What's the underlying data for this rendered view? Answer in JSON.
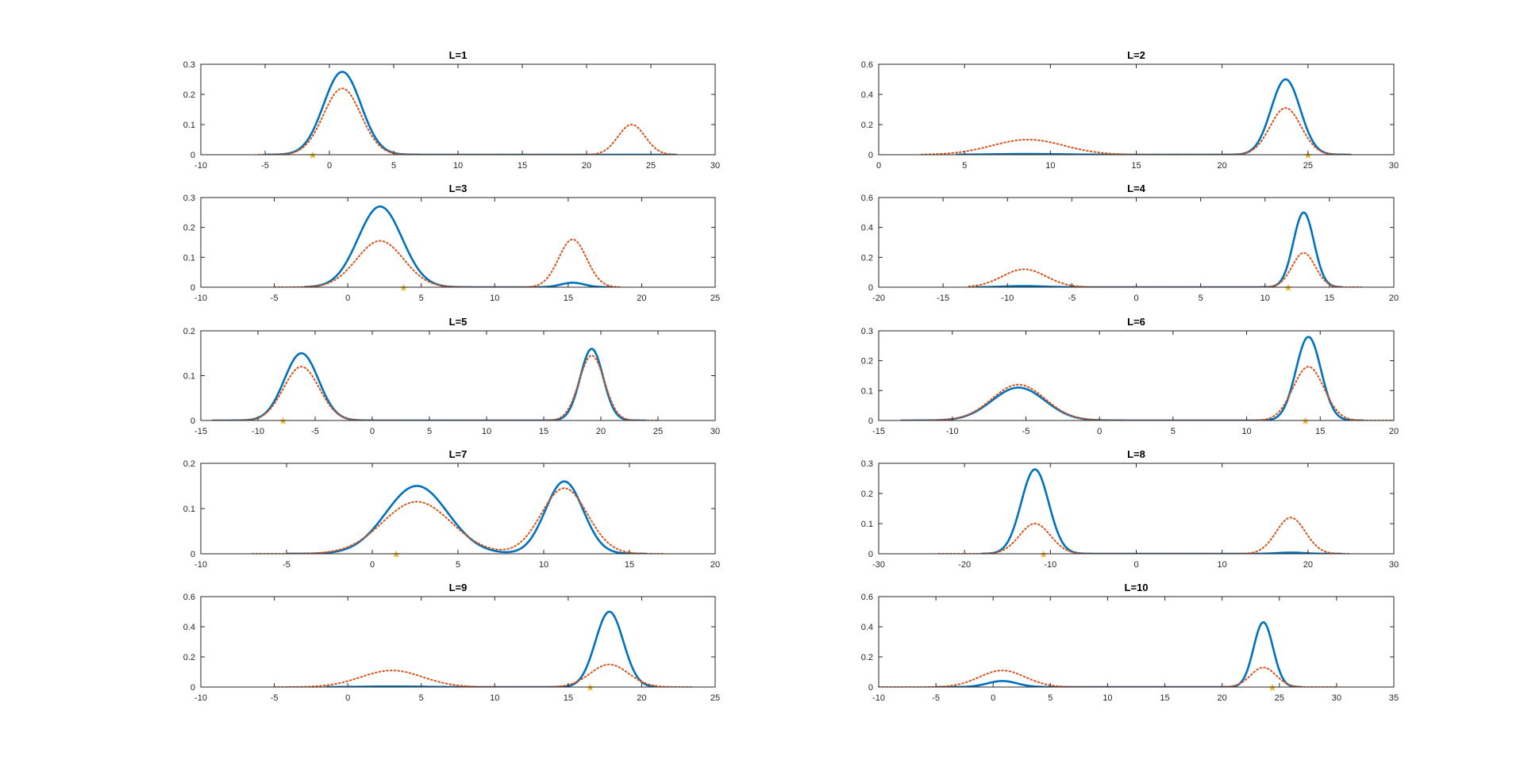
{
  "colors": {
    "solid": "#0072BD",
    "dotted": "#D95319",
    "marker": "#EDB120",
    "axis": "#262626"
  },
  "chart_data": [
    {
      "type": "line",
      "title": "L=1",
      "xlim": [
        -10,
        30
      ],
      "ylim": [
        0,
        0.3
      ],
      "xticks": [
        -10,
        -5,
        0,
        5,
        10,
        15,
        20,
        25,
        30
      ],
      "yticks": [
        0,
        0.1,
        0.2,
        0.3
      ],
      "series": [
        {
          "style": "solid",
          "components": [
            {
              "mu": 1,
              "sigma": 1.45,
              "amp": 0.275,
              "from": -5,
              "to": 27
            }
          ]
        },
        {
          "style": "dotted",
          "components": [
            {
              "mu": 1,
              "sigma": 1.45,
              "amp": 0.22,
              "from": -5.5,
              "to": 27
            },
            {
              "mu": 23.5,
              "sigma": 1.05,
              "amp": 0.1
            }
          ]
        }
      ],
      "marker": {
        "x": -1.3,
        "y": 0
      }
    },
    {
      "type": "line",
      "title": "L=2",
      "xlim": [
        0,
        30
      ],
      "ylim": [
        0,
        0.6
      ],
      "xticks": [
        0,
        5,
        10,
        15,
        20,
        25,
        30
      ],
      "yticks": [
        0,
        0.2,
        0.4,
        0.6
      ],
      "series": [
        {
          "style": "solid",
          "components": [
            {
              "mu": 23.7,
              "sigma": 0.85,
              "amp": 0.5,
              "from": 4.5,
              "to": 27.5
            },
            {
              "mu": 8.7,
              "sigma": 2,
              "amp": 0.005
            }
          ]
        },
        {
          "style": "dotted",
          "components": [
            {
              "mu": 8.7,
              "sigma": 2.1,
              "amp": 0.1,
              "from": 2.5,
              "to": 27.5
            },
            {
              "mu": 23.7,
              "sigma": 0.9,
              "amp": 0.31
            }
          ]
        }
      ],
      "marker": {
        "x": 25,
        "y": 0
      }
    },
    {
      "type": "line",
      "title": "L=3",
      "xlim": [
        -10,
        25
      ],
      "ylim": [
        0,
        0.3
      ],
      "xticks": [
        -10,
        -5,
        0,
        5,
        10,
        15,
        20,
        25
      ],
      "yticks": [
        0,
        0.1,
        0.2,
        0.3
      ],
      "series": [
        {
          "style": "solid",
          "components": [
            {
              "mu": 2.2,
              "sigma": 1.5,
              "amp": 0.27,
              "from": -3,
              "to": 18
            },
            {
              "mu": 15.3,
              "sigma": 0.8,
              "amp": 0.015
            }
          ]
        },
        {
          "style": "dotted",
          "components": [
            {
              "mu": 2.2,
              "sigma": 1.6,
              "amp": 0.155,
              "from": -5,
              "to": 18.5
            },
            {
              "mu": 15.3,
              "sigma": 0.95,
              "amp": 0.16
            }
          ]
        }
      ],
      "marker": {
        "x": 3.8,
        "y": 0
      }
    },
    {
      "type": "line",
      "title": "L=4",
      "xlim": [
        -20,
        20
      ],
      "ylim": [
        0,
        0.6
      ],
      "xticks": [
        -20,
        -15,
        -10,
        -5,
        0,
        5,
        10,
        15,
        20
      ],
      "yticks": [
        0,
        0.2,
        0.4,
        0.6
      ],
      "series": [
        {
          "style": "solid",
          "components": [
            {
              "mu": 13,
              "sigma": 0.8,
              "amp": 0.5,
              "from": -12.5,
              "to": 16
            },
            {
              "mu": -8.7,
              "sigma": 1.5,
              "amp": 0.008
            }
          ]
        },
        {
          "style": "dotted",
          "components": [
            {
              "mu": -8.7,
              "sigma": 1.7,
              "amp": 0.12,
              "from": -13,
              "to": 17.5
            },
            {
              "mu": 13,
              "sigma": 0.9,
              "amp": 0.23
            }
          ]
        }
      ],
      "marker": {
        "x": 11.8,
        "y": 0
      }
    },
    {
      "type": "line",
      "title": "L=5",
      "xlim": [
        -15,
        30
      ],
      "ylim": [
        0,
        0.2
      ],
      "xticks": [
        -15,
        -10,
        -5,
        0,
        5,
        10,
        15,
        20,
        25,
        30
      ],
      "yticks": [
        0,
        0.1,
        0.2
      ],
      "series": [
        {
          "style": "solid",
          "components": [
            {
              "mu": -6.2,
              "sigma": 1.5,
              "amp": 0.15,
              "from": -14,
              "to": 24
            },
            {
              "mu": 19.2,
              "sigma": 1,
              "amp": 0.16
            }
          ]
        },
        {
          "style": "dotted",
          "components": [
            {
              "mu": -6.2,
              "sigma": 1.55,
              "amp": 0.12,
              "from": -14,
              "to": 25
            },
            {
              "mu": 19.2,
              "sigma": 1.1,
              "amp": 0.145
            }
          ]
        }
      ],
      "marker": {
        "x": -7.8,
        "y": 0
      }
    },
    {
      "type": "line",
      "title": "L=6",
      "xlim": [
        -15,
        20
      ],
      "ylim": [
        0,
        0.3
      ],
      "xticks": [
        -15,
        -10,
        -5,
        0,
        5,
        10,
        15,
        20
      ],
      "yticks": [
        0,
        0.1,
        0.2,
        0.3
      ],
      "series": [
        {
          "style": "solid",
          "components": [
            {
              "mu": -5.5,
              "sigma": 1.8,
              "amp": 0.11,
              "from": -13.5,
              "to": 18
            },
            {
              "mu": 14.2,
              "sigma": 0.85,
              "amp": 0.28
            }
          ]
        },
        {
          "style": "dotted",
          "components": [
            {
              "mu": -5.5,
              "sigma": 1.8,
              "amp": 0.12,
              "from": -13.5,
              "to": 20
            },
            {
              "mu": 14.2,
              "sigma": 1.05,
              "amp": 0.18
            }
          ]
        }
      ],
      "marker": {
        "x": 14,
        "y": 0
      }
    },
    {
      "type": "line",
      "title": "L=7",
      "xlim": [
        -10,
        20
      ],
      "ylim": [
        0,
        0.2
      ],
      "xticks": [
        -10,
        -5,
        0,
        5,
        10,
        15,
        20
      ],
      "yticks": [
        0,
        0.1,
        0.2
      ],
      "series": [
        {
          "style": "solid",
          "components": [
            {
              "mu": 2.6,
              "sigma": 1.8,
              "amp": 0.15,
              "from": -5,
              "to": 16
            },
            {
              "mu": 11.2,
              "sigma": 1.1,
              "amp": 0.16
            }
          ]
        },
        {
          "style": "dotted",
          "components": [
            {
              "mu": 2.6,
              "sigma": 2,
              "amp": 0.115,
              "from": -7,
              "to": 17
            },
            {
              "mu": 11.2,
              "sigma": 1.35,
              "amp": 0.145
            }
          ]
        }
      ],
      "marker": {
        "x": 1.4,
        "y": 0
      }
    },
    {
      "type": "line",
      "title": "L=8",
      "xlim": [
        -30,
        30
      ],
      "ylim": [
        0,
        0.3
      ],
      "xticks": [
        -30,
        -20,
        -10,
        0,
        10,
        20,
        30
      ],
      "yticks": [
        0,
        0.1,
        0.2,
        0.3
      ],
      "series": [
        {
          "style": "solid",
          "components": [
            {
              "mu": -11.8,
              "sigma": 1.6,
              "amp": 0.28,
              "from": -18,
              "to": 24
            },
            {
              "mu": 18,
              "sigma": 1.5,
              "amp": 0.004
            }
          ]
        },
        {
          "style": "dotted",
          "components": [
            {
              "mu": -11.8,
              "sigma": 1.8,
              "amp": 0.1,
              "from": -23,
              "to": 25
            },
            {
              "mu": 18,
              "sigma": 1.7,
              "amp": 0.12
            }
          ]
        }
      ],
      "marker": {
        "x": -10.8,
        "y": 0
      }
    },
    {
      "type": "line",
      "title": "L=9",
      "xlim": [
        -10,
        25
      ],
      "ylim": [
        0,
        0.6
      ],
      "xticks": [
        -10,
        -5,
        0,
        5,
        10,
        15,
        20,
        25
      ],
      "yticks": [
        0,
        0.2,
        0.4,
        0.6
      ],
      "series": [
        {
          "style": "solid",
          "components": [
            {
              "mu": 17.8,
              "sigma": 0.95,
              "amp": 0.5,
              "from": -1.5,
              "to": 21
            },
            {
              "mu": 3,
              "sigma": 2,
              "amp": 0.004
            }
          ]
        },
        {
          "style": "dotted",
          "components": [
            {
              "mu": 3,
              "sigma": 2.1,
              "amp": 0.11,
              "from": -5,
              "to": 23.5
            },
            {
              "mu": 17.8,
              "sigma": 1.3,
              "amp": 0.15
            }
          ]
        }
      ],
      "marker": {
        "x": 16.5,
        "y": 0
      }
    },
    {
      "type": "line",
      "title": "L=10",
      "xlim": [
        -10,
        35
      ],
      "ylim": [
        0,
        0.6
      ],
      "xticks": [
        -10,
        -5,
        0,
        5,
        10,
        15,
        20,
        25,
        30,
        35
      ],
      "yticks": [
        0,
        0.2,
        0.4,
        0.6
      ],
      "series": [
        {
          "style": "solid",
          "components": [
            {
              "mu": 23.6,
              "sigma": 0.85,
              "amp": 0.43,
              "from": -5,
              "to": 27
            },
            {
              "mu": 0.8,
              "sigma": 1.3,
              "amp": 0.04
            }
          ]
        },
        {
          "style": "dotted",
          "components": [
            {
              "mu": 0.8,
              "sigma": 2,
              "amp": 0.11,
              "from": -10,
              "to": 30
            },
            {
              "mu": 23.6,
              "sigma": 1.1,
              "amp": 0.13
            }
          ]
        }
      ],
      "marker": {
        "x": 24.4,
        "y": 0
      }
    }
  ]
}
